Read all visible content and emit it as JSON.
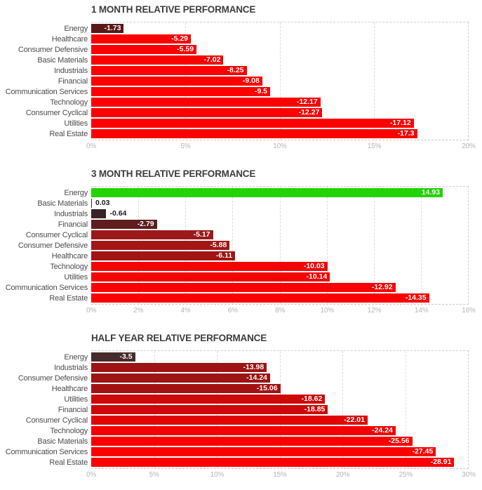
{
  "page": {
    "background": "#ffffff"
  },
  "chart_data": [
    {
      "type": "bar",
      "orientation": "horizontal",
      "title": "1 MONTH RELATIVE PERFORMANCE",
      "xlabel": "",
      "ylabel": "",
      "axis": {
        "min": 0,
        "max": 20,
        "unit": "%",
        "grid": "dashed",
        "ticks": [
          {
            "label": "0%",
            "value": 0
          },
          {
            "label": "5%",
            "value": 5
          },
          {
            "label": "10%",
            "value": 10
          },
          {
            "label": "15%",
            "value": 15
          },
          {
            "label": "20%",
            "value": 20
          }
        ]
      },
      "rows": [
        {
          "label": "Energy",
          "value": -1.73,
          "display": "-1.73",
          "color": "#5a1717",
          "inside": true
        },
        {
          "label": "Healthcare",
          "value": -5.29,
          "display": "-5.29",
          "color": "#f80300",
          "inside": true
        },
        {
          "label": "Consumer Defensive",
          "value": -5.59,
          "display": "-5.59",
          "color": "#f90300",
          "inside": true
        },
        {
          "label": "Basic Materials",
          "value": -7.02,
          "display": "-7.02",
          "color": "#fa0200",
          "inside": true
        },
        {
          "label": "Industrials",
          "value": -8.25,
          "display": "-8.25",
          "color": "#fb0200",
          "inside": true
        },
        {
          "label": "Financial",
          "value": -9.08,
          "display": "-9.08",
          "color": "#fb0100",
          "inside": true
        },
        {
          "label": "Communication Services",
          "value": -9.5,
          "display": "-9.5",
          "color": "#fc0100",
          "inside": true
        },
        {
          "label": "Technology",
          "value": -12.17,
          "display": "-12.17",
          "color": "#fd0000",
          "inside": true
        },
        {
          "label": "Consumer Cyclical",
          "value": -12.27,
          "display": "-12.27",
          "color": "#fd0000",
          "inside": true
        },
        {
          "label": "Utilities",
          "value": -17.12,
          "display": "-17.12",
          "color": "#fe0000",
          "inside": true
        },
        {
          "label": "Real Estate",
          "value": -17.3,
          "display": "-17.3",
          "color": "#ff0000",
          "inside": true
        }
      ]
    },
    {
      "type": "bar",
      "orientation": "horizontal",
      "title": "3 MONTH RELATIVE PERFORMANCE",
      "xlabel": "",
      "ylabel": "",
      "axis": {
        "min": 0,
        "max": 16,
        "unit": "%",
        "grid": "dashed",
        "ticks": [
          {
            "label": "0%",
            "value": 0
          },
          {
            "label": "2%",
            "value": 2
          },
          {
            "label": "4%",
            "value": 4
          },
          {
            "label": "6%",
            "value": 6
          },
          {
            "label": "8%",
            "value": 8
          },
          {
            "label": "10%",
            "value": 10
          },
          {
            "label": "12%",
            "value": 12
          },
          {
            "label": "14%",
            "value": 14
          },
          {
            "label": "16%",
            "value": 16
          }
        ]
      },
      "rows": [
        {
          "label": "Energy",
          "value": 14.93,
          "display": "14.93",
          "color": "#22d404",
          "inside": true
        },
        {
          "label": "Basic Materials",
          "value": 0.03,
          "display": "0.03",
          "color": "#3a3030",
          "inside": false
        },
        {
          "label": "Industrials",
          "value": -0.64,
          "display": "-0.64",
          "color": "#382424",
          "inside": false
        },
        {
          "label": "Financial",
          "value": -2.79,
          "display": "-2.79",
          "color": "#5f1d1d",
          "inside": true
        },
        {
          "label": "Consumer Cyclical",
          "value": -5.17,
          "display": "-5.17",
          "color": "#9c1919",
          "inside": true
        },
        {
          "label": "Consumer Defensive",
          "value": -5.88,
          "display": "-5.88",
          "color": "#a31616",
          "inside": true
        },
        {
          "label": "Healthcare",
          "value": -6.11,
          "display": "-6.11",
          "color": "#a31414",
          "inside": true
        },
        {
          "label": "Technology",
          "value": -10.03,
          "display": "-10.03",
          "color": "#f40505",
          "inside": true
        },
        {
          "label": "Utilities",
          "value": -10.14,
          "display": "-10.14",
          "color": "#f40505",
          "inside": true
        },
        {
          "label": "Communication Services",
          "value": -12.92,
          "display": "-12.92",
          "color": "#fa0202",
          "inside": true
        },
        {
          "label": "Real Estate",
          "value": -14.35,
          "display": "-14.35",
          "color": "#fc0000",
          "inside": true
        }
      ]
    },
    {
      "type": "bar",
      "orientation": "horizontal",
      "title": "HALF YEAR RELATIVE PERFORMANCE",
      "xlabel": "",
      "ylabel": "",
      "axis": {
        "min": 0,
        "max": 30,
        "unit": "%",
        "grid": "dashed",
        "ticks": [
          {
            "label": "0%",
            "value": 0
          },
          {
            "label": "5%",
            "value": 5
          },
          {
            "label": "10%",
            "value": 10
          },
          {
            "label": "15%",
            "value": 15
          },
          {
            "label": "20%",
            "value": 20
          },
          {
            "label": "25%",
            "value": 25
          },
          {
            "label": "30%",
            "value": 30
          }
        ]
      },
      "rows": [
        {
          "label": "Energy",
          "value": -3.5,
          "display": "-3.5",
          "color": "#472b2b",
          "inside": true
        },
        {
          "label": "Industrials",
          "value": -13.98,
          "display": "-13.98",
          "color": "#9d1414",
          "inside": true
        },
        {
          "label": "Consumer Defensive",
          "value": -14.24,
          "display": "-14.24",
          "color": "#9e1313",
          "inside": true
        },
        {
          "label": "Healthcare",
          "value": -15.06,
          "display": "-15.06",
          "color": "#a31212",
          "inside": true
        },
        {
          "label": "Utilities",
          "value": -18.62,
          "display": "-18.62",
          "color": "#cd0909",
          "inside": true
        },
        {
          "label": "Financial",
          "value": -18.85,
          "display": "-18.85",
          "color": "#ce0808",
          "inside": true
        },
        {
          "label": "Consumer Cyclical",
          "value": -22.01,
          "display": "-22.01",
          "color": "#e00505",
          "inside": true
        },
        {
          "label": "Technology",
          "value": -24.24,
          "display": "-24.24",
          "color": "#f40202",
          "inside": true
        },
        {
          "label": "Basic Materials",
          "value": -25.56,
          "display": "-25.56",
          "color": "#fa0101",
          "inside": true
        },
        {
          "label": "Communication Services",
          "value": -27.45,
          "display": "-27.45",
          "color": "#fb0000",
          "inside": true
        },
        {
          "label": "Real Estate",
          "value": -28.91,
          "display": "-28.91",
          "color": "#fc0000",
          "inside": true
        }
      ]
    }
  ],
  "colors": {
    "positive_bar": "#22d404",
    "negative_bar_max": "#ff0000",
    "negative_bar_min": "#382424",
    "title_text": "#3d3d3d",
    "category_text": "#4c4c4c",
    "axis_text": "#b5b5b5",
    "gridline": "#dcdcdc"
  }
}
